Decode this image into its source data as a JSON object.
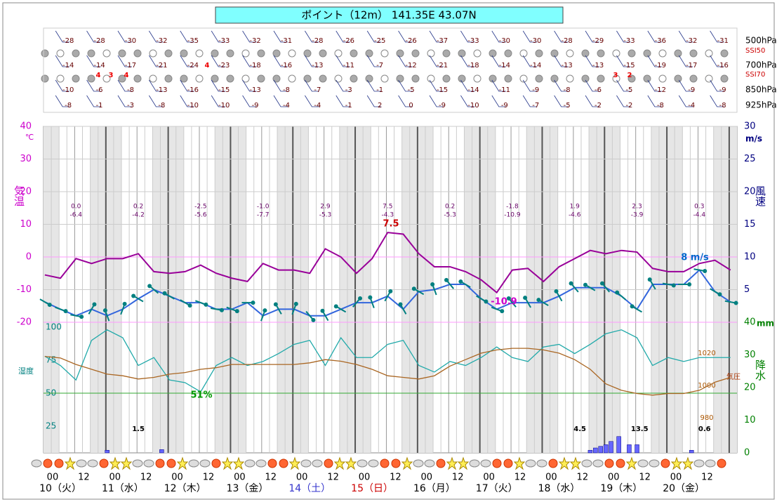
{
  "title": "ポイント（12m） 141.35E 43.07N",
  "chart_data": {
    "type": "line",
    "x": [
      -3,
      3,
      9,
      15,
      21,
      27,
      33,
      39,
      45,
      51,
      57,
      63,
      69,
      75,
      81,
      87,
      93,
      99,
      105,
      111,
      117,
      123,
      129,
      135,
      141,
      147,
      153,
      159,
      165,
      171,
      177,
      183,
      189,
      195,
      201,
      207,
      213,
      219,
      225,
      231,
      237,
      243,
      249,
      255,
      261
    ],
    "xlim": [
      -3.5,
      263.5
    ],
    "xticks": [
      {
        "value": 0,
        "label": "00"
      },
      {
        "value": 12,
        "label": "12"
      },
      {
        "value": 24,
        "label": "00"
      },
      {
        "value": 36,
        "label": "12"
      },
      {
        "value": 48,
        "label": "00"
      },
      {
        "value": 60,
        "label": "12"
      },
      {
        "value": 72,
        "label": "00"
      },
      {
        "value": 84,
        "label": "12"
      },
      {
        "value": 96,
        "label": "00"
      },
      {
        "value": 108,
        "label": "12"
      },
      {
        "value": 120,
        "label": "00"
      },
      {
        "value": 132,
        "label": "12"
      },
      {
        "value": 144,
        "label": "00"
      },
      {
        "value": 156,
        "label": "12"
      },
      {
        "value": 168,
        "label": "00"
      },
      {
        "value": 180,
        "label": "12"
      },
      {
        "value": 192,
        "label": "00"
      },
      {
        "value": 204,
        "label": "12"
      },
      {
        "value": 216,
        "label": "00"
      },
      {
        "value": 228,
        "label": "12"
      },
      {
        "value": 240,
        "label": "00"
      },
      {
        "value": 252,
        "label": "12"
      }
    ],
    "day_labels": [
      "10（火）",
      "11（水）",
      "12（木）",
      "13（金）",
      "14（土）",
      "15（日）",
      "16（月）",
      "17（火）",
      "18（水）",
      "19（木）",
      "20（金）"
    ],
    "day_colors": [
      "#000",
      "#000",
      "#000",
      "#000",
      "#3333cc",
      "#cc0000",
      "#000",
      "#000",
      "#000",
      "#000",
      "#000"
    ],
    "ylim": [
      -20,
      40
    ],
    "yticks": [
      -20,
      -10,
      0,
      10,
      20,
      30,
      40
    ],
    "y_unit": "℃",
    "y_label": "気温",
    "y2lim": [
      0,
      30
    ],
    "y2ticks": [
      5,
      10,
      15,
      20,
      25,
      30
    ],
    "y2_unit": "m/s",
    "y2_label": "風速",
    "precip_lim": [
      0,
      40
    ],
    "precip_ticks": [
      0,
      10,
      20,
      30,
      40
    ],
    "precip_unit": "mm",
    "precip_label": "降水",
    "humidity_lim": [
      0,
      100
    ],
    "humidity_ticks": [
      25,
      50,
      75,
      100
    ],
    "humidity_label": "湿度",
    "pressure_lim": [
      980,
      1020
    ],
    "pressure_ticks": [
      980,
      1000,
      1020
    ],
    "pressure_label": "気圧",
    "series": [
      {
        "name": "気温",
        "color": "#990099",
        "values": [
          -5.5,
          -6.5,
          -0.5,
          -2,
          -0.5,
          -0.5,
          1,
          -4.5,
          -5,
          -4.5,
          -2.5,
          -5,
          -6.5,
          -7.5,
          -2,
          -4,
          -4,
          -5,
          2.5,
          0,
          -5,
          -0.5,
          7.5,
          7,
          1,
          -3,
          -3,
          -4.5,
          -7,
          -10.9,
          -4,
          -3.5,
          -7.5,
          -3,
          -0.5,
          2,
          1,
          2,
          1.5,
          -3.5,
          -4.5,
          -4.5,
          -2,
          -1,
          -4
        ]
      },
      {
        "name": "風速",
        "color": "#3366dd",
        "axis": "y2",
        "values": [
          3.1,
          2,
          1,
          2,
          1,
          2,
          3.6,
          5,
          4,
          3,
          3,
          2,
          2,
          3,
          1,
          2,
          2,
          1,
          1,
          2,
          3,
          3,
          4,
          2,
          4.7,
          5,
          5.8,
          5.8,
          3.6,
          2,
          3,
          3,
          3,
          4,
          5.3,
          5.3,
          5.3,
          4,
          2,
          5.8,
          5.8,
          5.8,
          8,
          4.7,
          3.1
        ],
        "directions": [
          120,
          110,
          100,
          30,
          340,
          20,
          300,
          310,
          300,
          120,
          110,
          100,
          110,
          90,
          20,
          330,
          20,
          140,
          330,
          300,
          40,
          340,
          30,
          330,
          300,
          340,
          320,
          300,
          120,
          110,
          320,
          330,
          300,
          330,
          320,
          300,
          320,
          310,
          300,
          330,
          100,
          90,
          100,
          120,
          100
        ],
        "arrow_color": "#008080"
      },
      {
        "name": "湿度",
        "color": "#22aaaa",
        "axis": "humidity",
        "values": [
          78,
          71,
          60,
          90,
          98,
          92,
          71,
          77,
          60,
          58,
          51,
          71,
          77,
          71,
          74,
          80,
          87,
          90,
          71,
          92,
          77,
          77,
          87,
          90,
          71,
          66,
          74,
          71,
          77,
          85,
          77,
          74,
          85,
          87,
          80,
          87,
          95,
          98,
          92,
          71,
          77,
          74,
          77,
          77,
          77
        ]
      },
      {
        "name": "気圧",
        "color": "#aa6622",
        "axis": "pressure",
        "values": [
          1018,
          1017,
          1013,
          1010,
          1007,
          1006,
          1004,
          1005,
          1007,
          1008,
          1010,
          1011,
          1013,
          1013,
          1013,
          1013,
          1013,
          1014,
          1016,
          1015,
          1013,
          1010,
          1006,
          1005,
          1004,
          1006,
          1012,
          1016,
          1020,
          1022,
          1023,
          1023,
          1022,
          1020,
          1016,
          1010,
          1001,
          997,
          995,
          994,
          995,
          995,
          997,
          1002,
          1005
        ]
      }
    ],
    "precipitation": {
      "color": "#6666ff",
      "x": [
        21,
        42,
        207,
        209,
        211,
        213,
        215,
        218,
        222,
        225,
        246
      ],
      "values": [
        0.8,
        1,
        0.8,
        1.5,
        2,
        2.5,
        3.5,
        5,
        2.5,
        2.5,
        0.8
      ]
    },
    "daily_precip": {
      "x": [
        33,
        203,
        226,
        251
      ],
      "values": [
        1.5,
        4.5,
        13.5,
        0.6
      ]
    },
    "daily_max": {
      "values": [
        0,
        0.2,
        -2.5,
        -1,
        2.9,
        7.5,
        0.2,
        -1.8,
        1.9,
        2.3,
        0.3
      ],
      "value_labels": [
        "0.0",
        "0.2",
        "-2.5",
        "-1.0",
        "2.9",
        "7.5",
        "0.2",
        "-1.8",
        "1.9",
        "2.3",
        "0.3"
      ]
    },
    "daily_min": {
      "values": [
        -6.4,
        -4.2,
        -5.6,
        -7.7,
        -5.3,
        -4.3,
        -5.3,
        -10.9,
        -4.6,
        -3.9,
        -4.4
      ]
    },
    "annotations": [
      {
        "text": "7.5",
        "color": "#cc0000"
      },
      {
        "text": "-10.9",
        "color": "#cc00cc"
      },
      {
        "text": "8 m/s",
        "color": "#0066cc"
      },
      {
        "text": "51%",
        "color": "#009900"
      }
    ],
    "upper_air": {
      "x": [
        6,
        18,
        30,
        42,
        54,
        66,
        78,
        90,
        102,
        114,
        126,
        138,
        150,
        162,
        174,
        186,
        198,
        210,
        222,
        234,
        246,
        258
      ],
      "levels": [
        {
          "name": "500hPa",
          "values": [
            -28,
            -28,
            -30,
            -32,
            -35,
            -33,
            -32,
            -31,
            -28,
            -26,
            -25,
            -26,
            -37,
            -33,
            -30,
            -30,
            -28,
            -29,
            -33,
            -36,
            -32,
            -31
          ]
        },
        {
          "name": "700hPa",
          "values": [
            -14,
            -14,
            -17,
            -21,
            -24,
            -23,
            -18,
            -16,
            -13,
            -11,
            -7,
            -12,
            -21,
            -18,
            -14,
            -14,
            -13,
            -13,
            -15,
            -19,
            -17,
            -16
          ]
        },
        {
          "name": "850hPa",
          "values": [
            -10,
            -6,
            -8,
            -13,
            -16,
            -15,
            -13,
            -8,
            -7,
            -3,
            -1,
            -5,
            -15,
            -14,
            -11,
            -9,
            -8,
            -6,
            -5,
            -12,
            -9,
            -9
          ]
        },
        {
          "name": "925hPa",
          "values": [
            -8,
            -1,
            -3,
            -8,
            -10,
            -10,
            -9,
            -4,
            -4,
            -1,
            2,
            0,
            -9,
            -10,
            -9,
            -7,
            -5,
            -2,
            -2,
            -8,
            -4,
            -8
          ]
        }
      ],
      "ssi_names": [
        "SSI50",
        "SSI70"
      ],
      "ssi_marks": [
        "4",
        "3",
        "4",
        "4",
        "3",
        "2"
      ]
    }
  }
}
